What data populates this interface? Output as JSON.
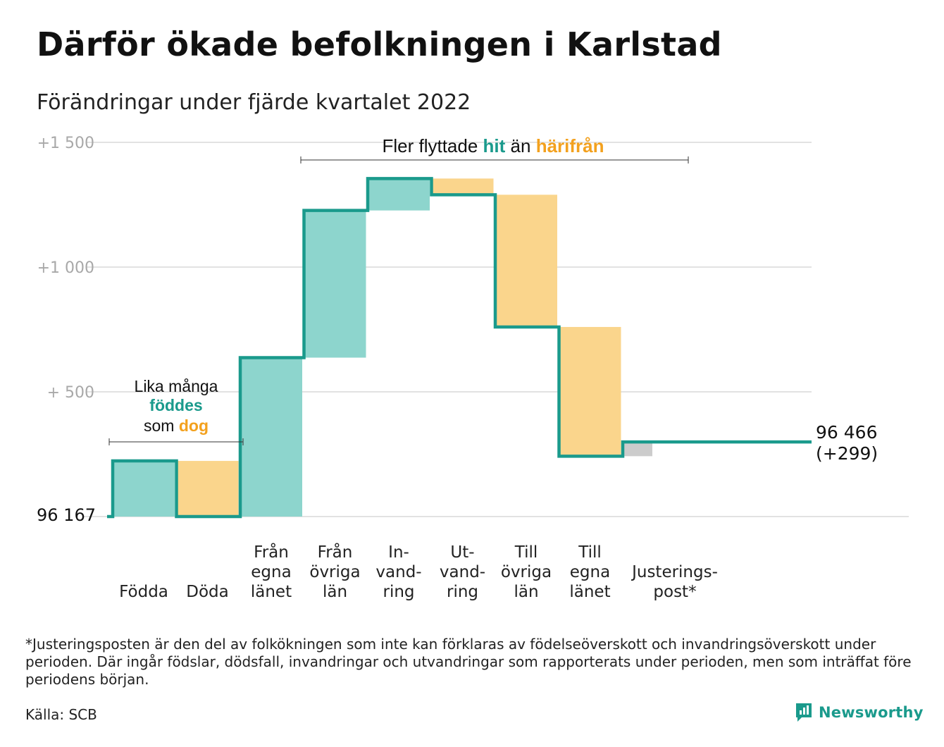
{
  "title": "Därför ökade befolkningen i Karlstad",
  "subtitle": "Förändringar under fjärde kvartalet 2022",
  "colors": {
    "increase": "#8dd5cd",
    "decrease": "#fad58c",
    "adjustment": "#cccccc",
    "line": "#1a9a8c",
    "grid": "#e2e2e2",
    "accent_teal": "#1a9a8c",
    "accent_orange": "#f3a11e"
  },
  "chart_data": {
    "type": "waterfall",
    "y_axis_unit": "change from start",
    "ylim": [
      0,
      1500
    ],
    "yticks": [
      {
        "value": 500,
        "label": "+ 500"
      },
      {
        "value": 1000,
        "label": "+1 000"
      },
      {
        "value": 1500,
        "label": "+1 500"
      }
    ],
    "grid": true,
    "start_label": "96 167",
    "end_label_line1": "96 466",
    "end_label_line2": "(+299)",
    "categories": [
      {
        "label": [
          "Födda"
        ],
        "value": 223,
        "kind": "increase"
      },
      {
        "label": [
          "Döda"
        ],
        "value": -223,
        "kind": "decrease"
      },
      {
        "label": [
          "Från",
          "egna",
          "länet"
        ],
        "value": 637,
        "kind": "increase"
      },
      {
        "label": [
          "Från",
          "övriga",
          "län"
        ],
        "value": 590,
        "kind": "increase"
      },
      {
        "label": [
          "In-",
          "vand-",
          "ring"
        ],
        "value": 128,
        "kind": "increase"
      },
      {
        "label": [
          "Ut-",
          "vand-",
          "ring"
        ],
        "value": -65,
        "kind": "decrease"
      },
      {
        "label": [
          "Till",
          "övriga",
          "län"
        ],
        "value": -530,
        "kind": "decrease"
      },
      {
        "label": [
          "Till",
          "egna",
          "länet"
        ],
        "value": -518,
        "kind": "decrease"
      },
      {
        "label": [
          "Justerings-",
          "post*"
        ],
        "value": 57,
        "kind": "adjustment"
      }
    ],
    "annotations": {
      "births_deaths": {
        "line1": "Lika många",
        "line2": "föddes",
        "line3_prefix": "som",
        "line3_highlight": "dog"
      },
      "migration": {
        "prefix": "Fler flyttade",
        "highlight1": "hit",
        "middle": "än",
        "highlight2": "härifrån"
      }
    }
  },
  "footnote": "*Justeringsposten är den del av folkökningen som inte kan förklaras av födelseöverskott och invandringsöverskott under perioden. Där ingår födslar, dödsfall, invandringar och utvandringar som rapporterats under perioden, men som inträffat före periodens början.",
  "source": "Källa: SCB",
  "brand": {
    "name": "Newsworthy",
    "icon": "newsworthy-logo-icon"
  }
}
